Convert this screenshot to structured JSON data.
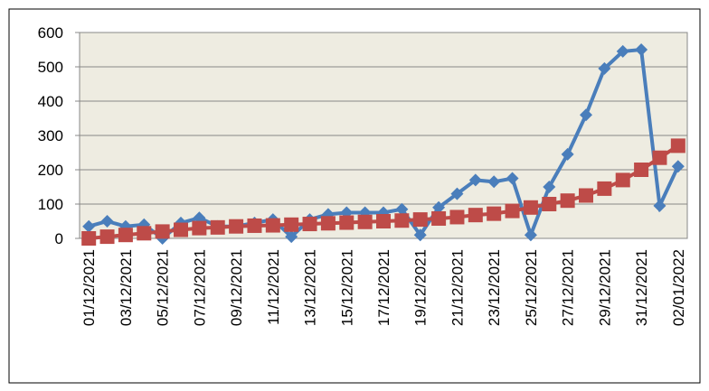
{
  "chart_data": {
    "type": "line",
    "categories": [
      "01/12/2021",
      null,
      "03/12/2021",
      null,
      "05/12/2021",
      null,
      "07/12/2021",
      null,
      "09/12/2021",
      null,
      "11/12/2021",
      null,
      "13/12/2021",
      null,
      "15/12/2021",
      null,
      "17/12/2021",
      null,
      "19/12/2021",
      null,
      "21/12/2021",
      null,
      "23/12/2021",
      null,
      "25/12/2021",
      null,
      "27/12/2021",
      null,
      "29/12/2021",
      null,
      "31/12/2021",
      null,
      "02/01/2022"
    ],
    "series": [
      {
        "color": "#4a7ebb",
        "marker": "diamond",
        "values": [
          35,
          50,
          35,
          40,
          0,
          45,
          60,
          35,
          35,
          45,
          55,
          5,
          55,
          70,
          75,
          75,
          75,
          85,
          10,
          90,
          130,
          170,
          165,
          175,
          10,
          150,
          245,
          360,
          495,
          545,
          550,
          95,
          210
        ]
      },
      {
        "color": "#be4b48",
        "marker": "square",
        "values": [
          0,
          5,
          10,
          15,
          20,
          25,
          30,
          32,
          35,
          37,
          38,
          40,
          42,
          44,
          46,
          48,
          50,
          52,
          55,
          58,
          62,
          68,
          72,
          80,
          90,
          100,
          110,
          125,
          145,
          170,
          200,
          235,
          270
        ]
      }
    ],
    "ylim": [
      0,
      600
    ],
    "yticks": [
      0,
      100,
      200,
      300,
      400,
      500,
      600
    ],
    "grid": true
  }
}
